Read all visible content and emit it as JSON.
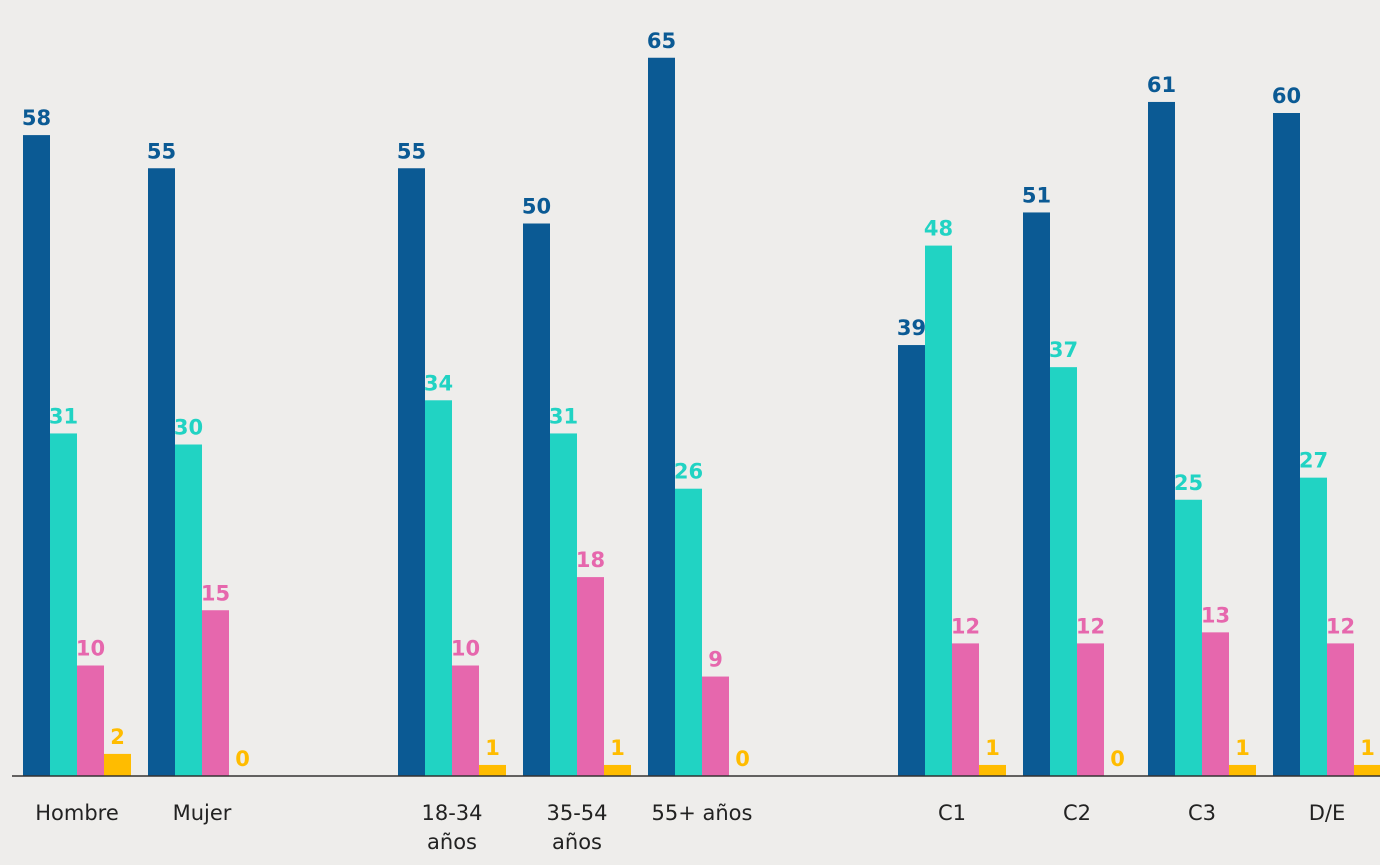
{
  "chart_data": {
    "type": "bar",
    "categories": [
      "Hombre",
      "Mujer",
      "18-34 años",
      "35-54 años",
      "55+ años",
      "C1",
      "C2",
      "C3",
      "D/E"
    ],
    "category_label_lines": [
      [
        "Hombre"
      ],
      [
        "Mujer"
      ],
      [
        "18-34",
        "años"
      ],
      [
        "35-54",
        "años"
      ],
      [
        "55+ años"
      ],
      [
        "C1"
      ],
      [
        "C2"
      ],
      [
        "C3"
      ],
      [
        "D/E"
      ]
    ],
    "series": [
      {
        "values": [
          58,
          55,
          55,
          50,
          65,
          39,
          51,
          61,
          60
        ],
        "color": "#0b5a94"
      },
      {
        "values": [
          31,
          30,
          34,
          31,
          26,
          48,
          37,
          25,
          27
        ],
        "color": "#21d3c3"
      },
      {
        "values": [
          10,
          15,
          10,
          18,
          9,
          12,
          12,
          13,
          12
        ],
        "color": "#e667ad"
      },
      {
        "values": [
          2,
          0,
          1,
          1,
          0,
          1,
          0,
          1,
          1
        ],
        "color": "#ffbc00"
      }
    ],
    "ylim": [
      0,
      70
    ],
    "grid": false,
    "data_labels": true
  }
}
